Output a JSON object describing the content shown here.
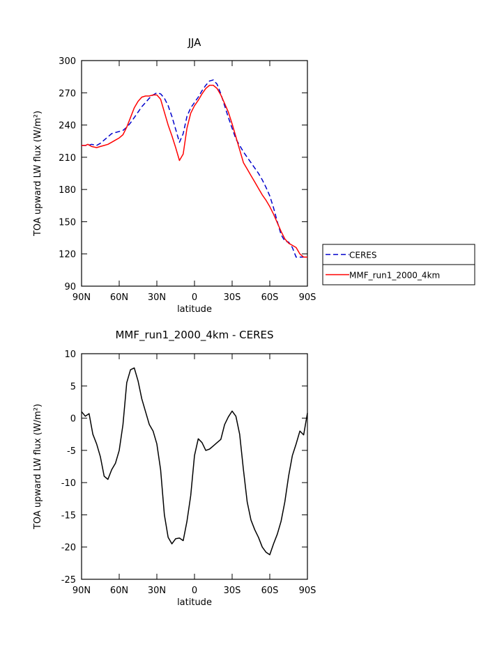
{
  "chart_data": [
    {
      "type": "line",
      "title": "JJA",
      "xlabel": "latitude",
      "ylabel": "TOA upward LW flux (W/m²)",
      "ylim": [
        90,
        300
      ],
      "yticks": [
        90,
        120,
        150,
        180,
        210,
        240,
        270,
        300
      ],
      "xlim": [
        90,
        -90
      ],
      "xticks": [
        90,
        60,
        30,
        0,
        -30,
        -60,
        -90
      ],
      "xticklabels": [
        "90N",
        "60N",
        "30N",
        "0",
        "30S",
        "60S",
        "90S"
      ],
      "legend_position": "outside-right",
      "series": [
        {
          "name": "CERES",
          "color": "#0000cc",
          "dash": "dashed",
          "x": [
            90,
            87,
            85,
            82,
            78,
            75,
            72,
            69,
            66,
            63,
            60,
            57,
            54,
            51,
            48,
            45,
            42,
            39,
            36,
            33,
            30,
            27,
            24,
            21,
            18,
            15,
            12,
            9,
            6,
            3,
            0,
            -3,
            -6,
            -9,
            -12,
            -15,
            -18,
            -21,
            -24,
            -27,
            -30,
            -33,
            -36,
            -39,
            -42,
            -45,
            -48,
            -51,
            -54,
            -57,
            -60,
            -63,
            -66,
            -69,
            -72,
            -75,
            -78,
            -81,
            -84,
            -87,
            -90
          ],
          "y": [
            221,
            221,
            221,
            222,
            221,
            223,
            226,
            229,
            232,
            233,
            234,
            235,
            238,
            242,
            247,
            252,
            257,
            261,
            265,
            268,
            270,
            269,
            265,
            258,
            248,
            236,
            224,
            232,
            248,
            256,
            261,
            266,
            272,
            277,
            281,
            282,
            278,
            269,
            258,
            247,
            237,
            227,
            221,
            215,
            210,
            205,
            200,
            195,
            189,
            182,
            174,
            163,
            150,
            138,
            132,
            131,
            126,
            117,
            117,
            117,
            117
          ]
        },
        {
          "name": "MMF_run1_2000_4km",
          "color": "#ff0000",
          "dash": "solid",
          "x": [
            90,
            87,
            85,
            82,
            78,
            75,
            72,
            69,
            66,
            63,
            60,
            57,
            54,
            51,
            48,
            45,
            42,
            39,
            36,
            33,
            30,
            27,
            24,
            21,
            18,
            15,
            12,
            9,
            6,
            3,
            0,
            -3,
            -6,
            -9,
            -12,
            -15,
            -18,
            -21,
            -24,
            -27,
            -30,
            -33,
            -36,
            -39,
            -42,
            -45,
            -48,
            -51,
            -54,
            -57,
            -60,
            -63,
            -66,
            -69,
            -72,
            -75,
            -78,
            -81,
            -84,
            -87,
            -90
          ],
          "y": [
            221,
            221,
            222,
            220,
            219,
            220,
            221,
            222,
            224,
            226,
            228,
            231,
            238,
            247,
            256,
            262,
            266,
            267,
            267,
            268,
            268,
            264,
            252,
            240,
            230,
            219,
            207,
            213,
            237,
            251,
            258,
            263,
            269,
            274,
            277,
            277,
            274,
            268,
            260,
            252,
            241,
            229,
            217,
            205,
            199,
            193,
            187,
            181,
            175,
            170,
            164,
            157,
            149,
            141,
            134,
            130,
            128,
            126,
            120,
            117,
            117
          ]
        }
      ]
    },
    {
      "type": "line",
      "title": "MMF_run1_2000_4km - CERES",
      "xlabel": "latitude",
      "ylabel": "TOA upward LW flux (W/m²)",
      "ylim": [
        -25,
        10
      ],
      "yticks": [
        -25,
        -20,
        -15,
        -10,
        -5,
        0,
        5,
        10
      ],
      "xlim": [
        90,
        -90
      ],
      "xticks": [
        90,
        60,
        30,
        0,
        -30,
        -60,
        -90
      ],
      "xticklabels": [
        "90N",
        "60N",
        "30N",
        "0",
        "30S",
        "60S",
        "90S"
      ],
      "series": [
        {
          "color": "#000000",
          "dash": "solid",
          "x": [
            90,
            87,
            84,
            81,
            78,
            75,
            72,
            69,
            66,
            63,
            60,
            57,
            54,
            51,
            48,
            45,
            42,
            39,
            36,
            33,
            30,
            27,
            24,
            21,
            18,
            15,
            12,
            9,
            6,
            3,
            0,
            -3,
            -6,
            -9,
            -12,
            -15,
            -18,
            -21,
            -24,
            -27,
            -30,
            -33,
            -36,
            -39,
            -42,
            -45,
            -48,
            -51,
            -54,
            -57,
            -60,
            -63,
            -66,
            -69,
            -72,
            -75,
            -78,
            -81,
            -84,
            -87,
            -90
          ],
          "y": [
            1.0,
            0.3,
            0.7,
            -2.5,
            -4.0,
            -6.0,
            -9.0,
            -9.5,
            -8.0,
            -7.0,
            -5.0,
            -1.0,
            5.5,
            7.5,
            7.8,
            5.8,
            3.0,
            1.0,
            -1.0,
            -2.0,
            -4.0,
            -8.0,
            -15.0,
            -18.5,
            -19.5,
            -18.7,
            -18.6,
            -19.0,
            -16.0,
            -12.0,
            -5.8,
            -3.2,
            -3.8,
            -5.0,
            -4.8,
            -4.3,
            -3.8,
            -3.3,
            -1.0,
            0.2,
            1.1,
            0.3,
            -2.5,
            -8.0,
            -13.0,
            -15.8,
            -17.3,
            -18.5,
            -20.0,
            -20.8,
            -21.2,
            -19.5,
            -18.0,
            -16.0,
            -13.0,
            -9.0,
            -5.8,
            -4.0,
            -2.0,
            -2.6,
            0.8
          ]
        }
      ]
    }
  ]
}
